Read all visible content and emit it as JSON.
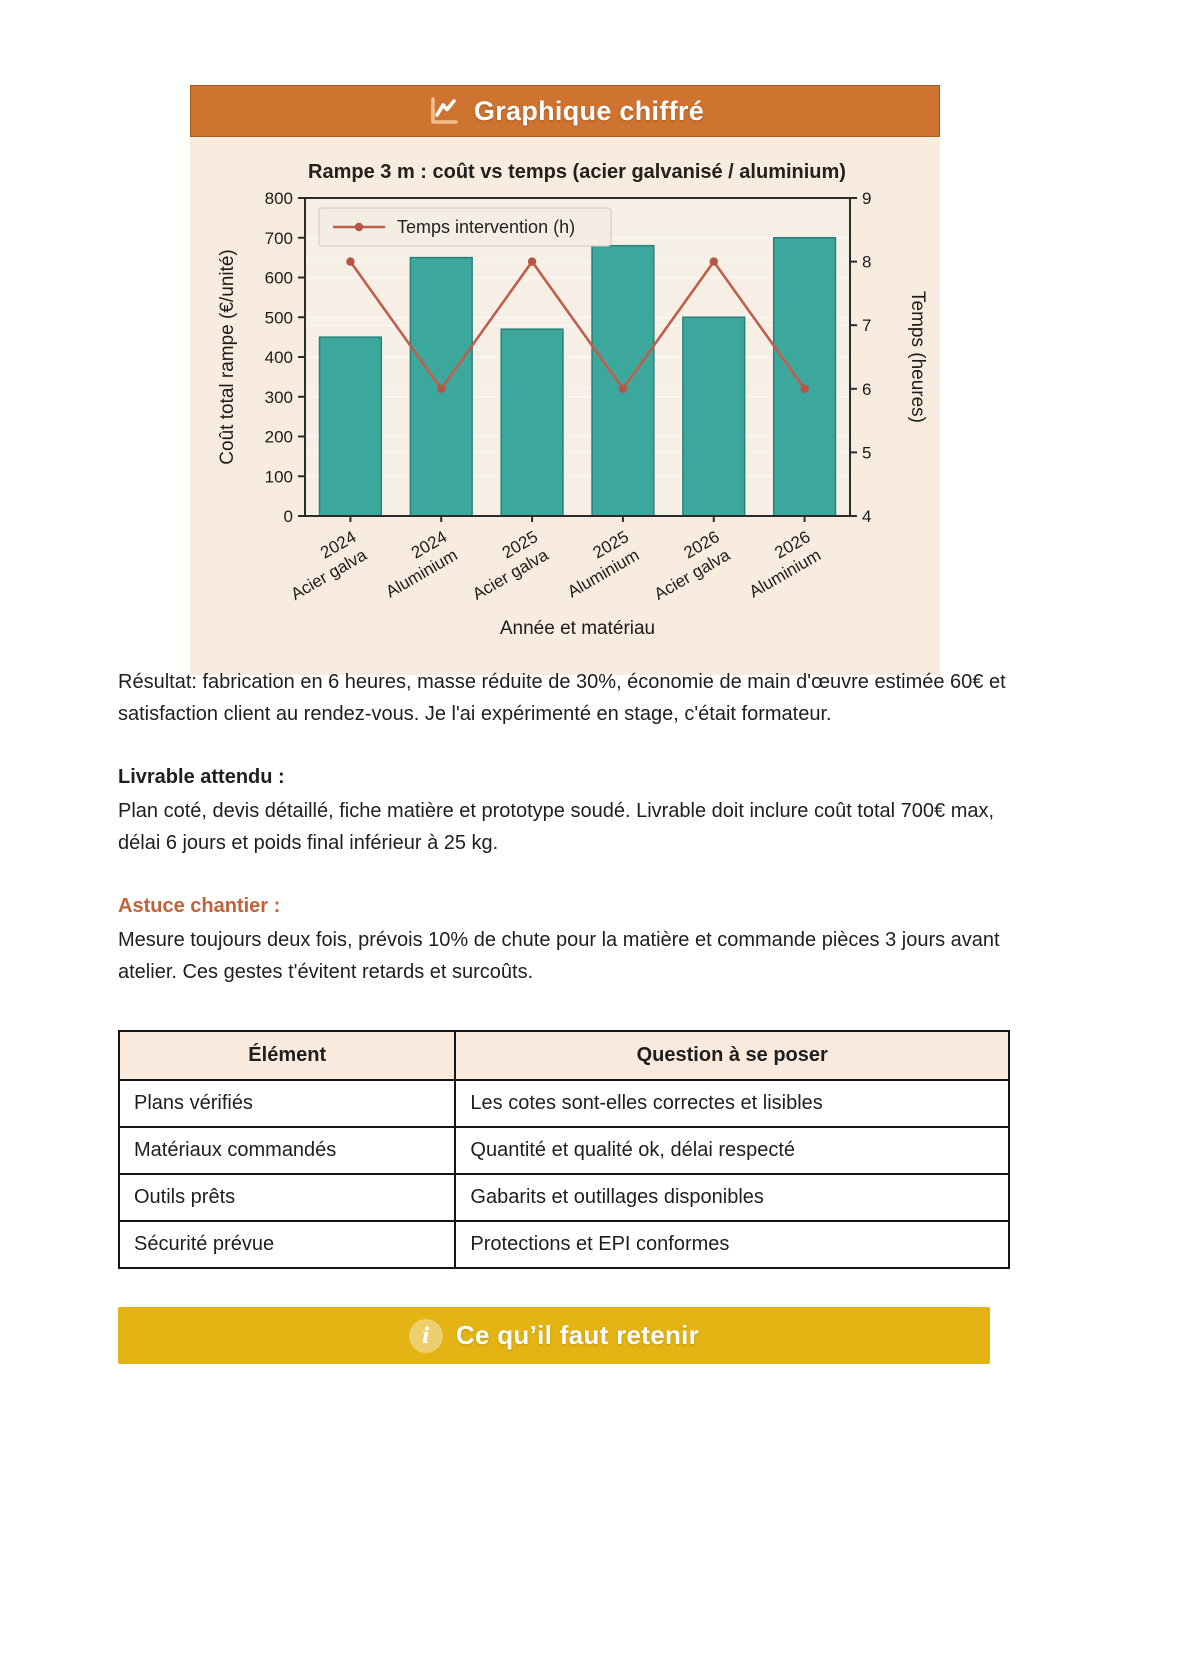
{
  "header": {
    "title": "Graphique chiffré"
  },
  "chart_data": {
    "type": "bar",
    "title": "Rampe 3 m : coût vs temps (acier galvanisé / aluminium)",
    "categories": [
      "2024\nAcier galva",
      "2024\nAluminium",
      "2025\nAcier galva",
      "2025\nAluminium",
      "2026\nAcier galva",
      "2026\nAluminium"
    ],
    "series": [
      {
        "name": "Coût total rampe (€/unité)",
        "type": "bar",
        "axis": "left",
        "values": [
          450,
          650,
          470,
          680,
          500,
          700
        ],
        "color": "#3ba79d",
        "edge_color": "#2b8179"
      },
      {
        "name": "Temps intervention (h)",
        "type": "line",
        "axis": "right",
        "values": [
          8,
          6,
          8,
          6,
          8,
          6
        ],
        "color": "#c05e4b",
        "marker_color": "#b85543"
      }
    ],
    "xlabel": "Année et matériau",
    "ylabel_left": "Coût total rampe (€/unité)",
    "ylabel_right": "Temps (heures)",
    "ylim_left": [
      0,
      800
    ],
    "yticks_left": [
      0,
      100,
      200,
      300,
      400,
      500,
      600,
      700,
      800
    ],
    "ylim_right": [
      4,
      9
    ],
    "yticks_right": [
      4,
      5,
      6,
      7,
      8,
      9
    ],
    "legend": {
      "label": "Temps intervention (h)",
      "position": "upper-left"
    },
    "grid": true,
    "plot_bg": "#f5efe6"
  },
  "sections": {
    "result_paragraph": "Résultat: fabrication en 6 heures, masse réduite de 30%, économie de main d'œuvre estimée 60€ et satisfaction client au rendez-vous. Je l'ai expérimenté en stage, c'était formateur.",
    "livrable_heading": "Livrable attendu :",
    "livrable_body": "Plan coté, devis détaillé, fiche matière et prototype soudé. Livrable doit inclure coût total 700€ max, délai 6 jours et poids final inférieur à 25 kg.",
    "astuce_heading": "Astuce chantier :",
    "astuce_body": "Mesure toujours deux fois, prévois 10% de chute pour la matière et commande pièces 3 jours avant atelier. Ces gestes t'évitent retards et surcoûts."
  },
  "table": {
    "headers": [
      "Élément",
      "Question à se poser"
    ],
    "rows": [
      [
        "Plans vérifiés",
        "Les cotes sont-elles correctes et lisibles"
      ],
      [
        "Matériaux commandés",
        "Quantité et qualité ok, délai respecté"
      ],
      [
        "Outils prêts",
        "Gabarits et outillages disponibles"
      ],
      [
        "Sécurité prévue",
        "Protections et EPI conformes"
      ]
    ]
  },
  "banner": {
    "label": "Ce qu’il faut retenir"
  },
  "colors": {
    "header_bg": "#cf7330",
    "accent_orange": "#c2613a",
    "banner_bg": "#e3b414",
    "bar_fill": "#3ba79d",
    "line_color": "#c05e4b",
    "panel_bg": "#f8ebdf",
    "plot_bg": "#f5efe6",
    "table_header_bg": "#faeade",
    "text": "#1e1e1e"
  }
}
